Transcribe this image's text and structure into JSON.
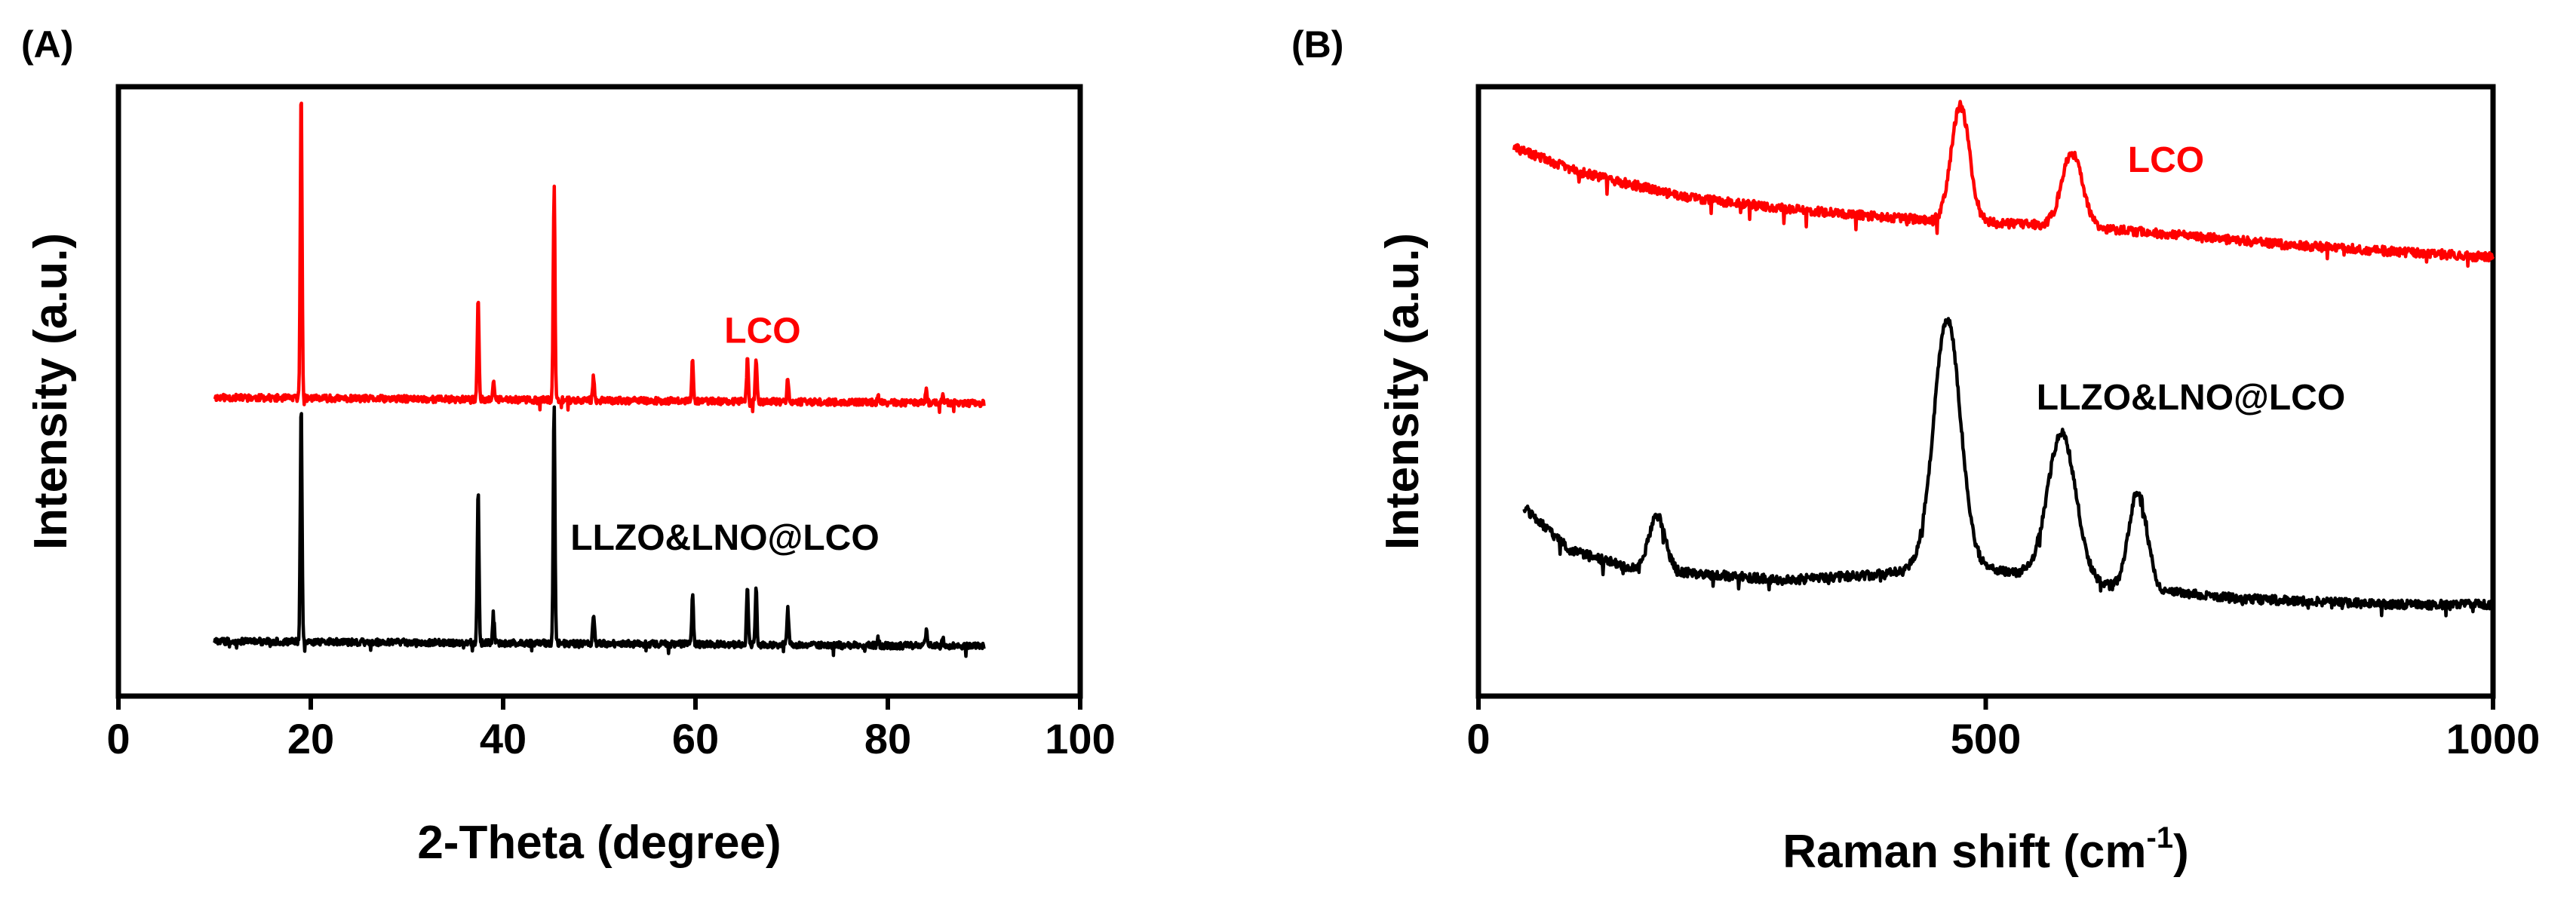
{
  "chart_data": [
    {
      "panel": "(A)",
      "type": "line",
      "title": "",
      "xlabel": "2-Theta (degree)",
      "ylabel": "Intensity (a.u.)",
      "xlim": [
        0,
        100
      ],
      "ylim": [
        0,
        100
      ],
      "xticks": [
        0,
        20,
        40,
        60,
        80,
        100
      ],
      "xtick_labels": [
        "0",
        "20",
        "40",
        "60",
        "80",
        "100"
      ],
      "yticks_shown": false,
      "grid": false,
      "x_range": [
        10,
        90
      ],
      "series": [
        {
          "name": "LCO",
          "color": "#ff0000",
          "baseline": 49,
          "baseline_slope": -0.012,
          "noise": 0.55,
          "peaks": [
            [
              19.0,
              51
            ],
            [
              37.4,
              17
            ],
            [
              39.0,
              3.5
            ],
            [
              45.3,
              36
            ],
            [
              49.4,
              4
            ],
            [
              59.7,
              7
            ],
            [
              65.4,
              7
            ],
            [
              66.3,
              7
            ],
            [
              69.6,
              4
            ],
            [
              79.0,
              1
            ],
            [
              84.0,
              2
            ],
            [
              85.7,
              1
            ]
          ]
        },
        {
          "name": "LLZO&LNO@LCO",
          "color": "#000000",
          "baseline": 9,
          "baseline_slope": -0.01,
          "noise": 0.55,
          "peaks": [
            [
              19.0,
              39
            ],
            [
              37.4,
              25
            ],
            [
              39.0,
              5
            ],
            [
              45.3,
              39
            ],
            [
              49.4,
              5
            ],
            [
              59.7,
              8
            ],
            [
              65.4,
              10
            ],
            [
              66.3,
              9
            ],
            [
              69.6,
              6
            ],
            [
              79.0,
              1.2
            ],
            [
              84.0,
              2.5
            ],
            [
              85.7,
              1.5
            ]
          ]
        }
      ],
      "annotations": [
        {
          "text": "LCO",
          "series": "LCO",
          "x": 63,
          "y": 58
        },
        {
          "text": "LLZO&LNO@LCO",
          "series": "LLZO&LNO@LCO",
          "x": 47,
          "y": 24
        }
      ]
    },
    {
      "panel": "(B)",
      "type": "line",
      "title": "",
      "xlabel": "Raman shift (cm",
      "xlabel_sup": "-1",
      "xlabel_suffix": ")",
      "ylabel": "Intensity (a.u.)",
      "xlim": [
        0,
        1000
      ],
      "ylim": [
        0,
        100
      ],
      "xticks": [
        0,
        500,
        1000
      ],
      "xtick_labels": [
        "0",
        "500",
        "1000"
      ],
      "yticks_shown": false,
      "grid": false,
      "series": [
        {
          "name": "LCO",
          "color": "#ff0000",
          "x_range": [
            35,
            1000
          ],
          "baseline_points": [
            [
              35,
              90
            ],
            [
              100,
              86
            ],
            [
              200,
              82
            ],
            [
              300,
              80
            ],
            [
              450,
              78
            ],
            [
              600,
              77
            ],
            [
              800,
              74
            ],
            [
              1000,
              72
            ]
          ],
          "noise": 0.75,
          "peaks": [
            [
              475,
              19,
              9
            ],
            [
              585,
              12,
              10
            ]
          ]
        },
        {
          "name": "LLZO&LNO@LCO",
          "color": "#000000",
          "x_range": [
            45,
            1000
          ],
          "baseline_points": [
            [
              45,
              31
            ],
            [
              90,
              24
            ],
            [
              150,
              21
            ],
            [
              300,
              19
            ],
            [
              400,
              20
            ],
            [
              460,
              22
            ],
            [
              620,
              18
            ],
            [
              750,
              16
            ],
            [
              900,
              15
            ],
            [
              1000,
              15
            ]
          ],
          "noise": 0.75,
          "peaks": [
            [
              176,
              9,
              8
            ],
            [
              462,
              40,
              13
            ],
            [
              575,
              24,
              14
            ],
            [
              650,
              16,
              9
            ]
          ]
        }
      ],
      "annotations": [
        {
          "text": "LCO",
          "series": "LCO",
          "x": 640,
          "y": 86
        },
        {
          "text": "LLZO&LNO@LCO",
          "series": "LLZO&LNO@LCO",
          "x": 550,
          "y": 47
        }
      ]
    }
  ]
}
